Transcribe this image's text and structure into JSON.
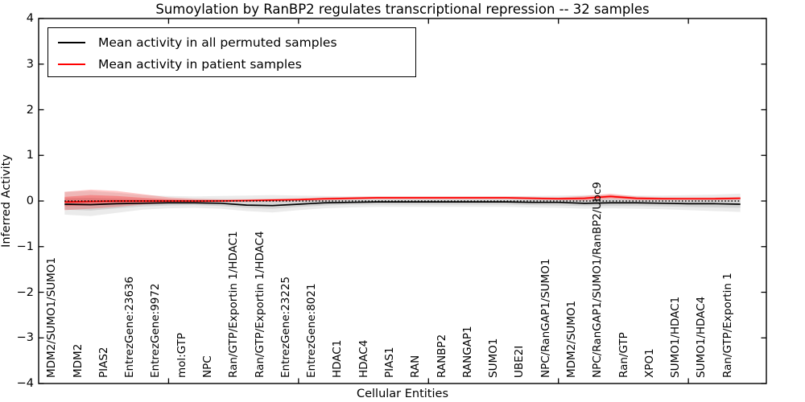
{
  "chart_data": {
    "type": "line",
    "title": "Sumoylation by RanBP2 regulates transcriptional repression -- 32 samples",
    "xlabel": "Cellular Entities",
    "ylabel": "Inferred Activity",
    "ylim": [
      -4,
      4
    ],
    "xlim": [
      0,
      28
    ],
    "yticks": [
      4,
      3,
      2,
      1,
      0,
      -1,
      -2,
      -3,
      -4
    ],
    "ytick_labels": [
      "4",
      "3",
      "2",
      "1",
      "0",
      "−1",
      "−2",
      "−3",
      "−4"
    ],
    "xticks": [
      5,
      10,
      15,
      20,
      25
    ],
    "grid": false,
    "legend_position": "upper-left",
    "categories": [
      "MDM2/SUMO1/SUMO1",
      "MDM2",
      "PIAS2",
      "EntrezGene:23636",
      "EntrezGene:9972",
      "mol:GTP",
      "NPC",
      "Ran/GTP/Exportin 1/HDAC1",
      "Ran/GTP/Exportin 1/HDAC4",
      "EntrezGene:23225",
      "EntrezGene:8021",
      "HDAC1",
      "HDAC4",
      "PIAS1",
      "RAN",
      "RANBP2",
      "RANGAP1",
      "SUMO1",
      "UBE2I",
      "NPC/RanGAP1/SUMO1",
      "MDM2/SUMO1",
      "NPC/RanGAP1/SUMO1/RanBP2/Ubc9",
      "Ran/GTP",
      "XPO1",
      "SUMO1/HDAC1",
      "SUMO1/HDAC4",
      "Ran/GTP/Exportin 1"
    ],
    "zero_line": {
      "value": 0,
      "color": "#000000",
      "style": "dotted"
    },
    "series": [
      {
        "name": "Mean activity in all permuted samples",
        "color": "#000000",
        "values": [
          -0.07,
          -0.08,
          -0.06,
          -0.05,
          -0.04,
          -0.04,
          -0.05,
          -0.09,
          -0.1,
          -0.07,
          -0.04,
          -0.03,
          -0.02,
          -0.02,
          -0.02,
          -0.02,
          -0.02,
          -0.02,
          -0.03,
          -0.03,
          -0.05,
          -0.04,
          -0.04,
          -0.05,
          -0.06,
          -0.06,
          -0.07
        ]
      },
      {
        "name": "Mean activity in patient samples",
        "color": "#ff0000",
        "values": [
          -0.02,
          -0.01,
          0.0,
          0.0,
          0.0,
          0.0,
          0.0,
          0.01,
          0.02,
          0.03,
          0.05,
          0.06,
          0.07,
          0.07,
          0.07,
          0.07,
          0.07,
          0.07,
          0.06,
          0.05,
          0.06,
          0.1,
          0.06,
          0.05,
          0.05,
          0.05,
          0.06
        ]
      }
    ],
    "bands": [
      {
        "name": "permuted-envelope-outer",
        "color": "#000000",
        "opacity": 0.08,
        "upper": [
          0.2,
          0.22,
          0.18,
          0.13,
          0.11,
          0.1,
          0.11,
          0.12,
          0.13,
          0.12,
          0.11,
          0.1,
          0.1,
          0.1,
          0.1,
          0.1,
          0.1,
          0.1,
          0.11,
          0.12,
          0.13,
          0.13,
          0.12,
          0.12,
          0.13,
          0.14,
          0.16
        ],
        "lower": [
          -0.3,
          -0.33,
          -0.26,
          -0.19,
          -0.16,
          -0.15,
          -0.17,
          -0.22,
          -0.25,
          -0.2,
          -0.16,
          -0.14,
          -0.13,
          -0.13,
          -0.13,
          -0.13,
          -0.13,
          -0.13,
          -0.14,
          -0.15,
          -0.17,
          -0.16,
          -0.17,
          -0.18,
          -0.2,
          -0.22,
          -0.24
        ]
      },
      {
        "name": "permuted-envelope-inner",
        "color": "#000000",
        "opacity": 0.1,
        "upper": [
          0.06,
          0.07,
          0.05,
          0.04,
          0.03,
          0.03,
          0.03,
          0.02,
          0.02,
          0.03,
          0.03,
          0.03,
          0.03,
          0.03,
          0.03,
          0.03,
          0.03,
          0.03,
          0.03,
          0.03,
          0.03,
          0.04,
          0.03,
          0.03,
          0.03,
          0.04,
          0.04
        ],
        "lower": [
          -0.19,
          -0.21,
          -0.16,
          -0.12,
          -0.1,
          -0.09,
          -0.11,
          -0.15,
          -0.17,
          -0.13,
          -0.1,
          -0.08,
          -0.08,
          -0.08,
          -0.08,
          -0.08,
          -0.08,
          -0.08,
          -0.09,
          -0.1,
          -0.11,
          -0.11,
          -0.11,
          -0.12,
          -0.13,
          -0.14,
          -0.15
        ]
      },
      {
        "name": "patient-envelope-outer",
        "color": "#ff0000",
        "opacity": 0.22,
        "upper": [
          0.2,
          0.25,
          0.22,
          0.15,
          0.08,
          0.05,
          0.04,
          0.04,
          0.05,
          0.06,
          0.08,
          0.09,
          0.1,
          0.1,
          0.1,
          0.1,
          0.1,
          0.1,
          0.09,
          0.08,
          0.11,
          0.16,
          0.1,
          0.08,
          0.08,
          0.08,
          0.09
        ],
        "lower": [
          -0.2,
          -0.17,
          -0.13,
          -0.08,
          -0.05,
          -0.03,
          -0.02,
          -0.02,
          -0.01,
          0.0,
          0.01,
          0.03,
          0.04,
          0.04,
          0.04,
          0.04,
          0.04,
          0.04,
          0.03,
          0.02,
          0.01,
          0.04,
          0.02,
          0.02,
          0.02,
          0.02,
          0.03
        ]
      },
      {
        "name": "patient-envelope-inner",
        "color": "#ff0000",
        "opacity": 0.25,
        "upper": [
          0.09,
          0.13,
          0.11,
          0.07,
          0.04,
          0.02,
          0.02,
          0.02,
          0.03,
          0.04,
          0.06,
          0.07,
          0.08,
          0.08,
          0.08,
          0.08,
          0.08,
          0.08,
          0.07,
          0.07,
          0.08,
          0.13,
          0.08,
          0.07,
          0.06,
          0.06,
          0.07
        ],
        "lower": [
          -0.11,
          -0.1,
          -0.07,
          -0.04,
          -0.02,
          -0.01,
          -0.01,
          0.0,
          0.01,
          0.02,
          0.04,
          0.05,
          0.06,
          0.06,
          0.06,
          0.06,
          0.06,
          0.06,
          0.05,
          0.04,
          0.04,
          0.07,
          0.04,
          0.04,
          0.04,
          0.04,
          0.05
        ]
      }
    ]
  }
}
